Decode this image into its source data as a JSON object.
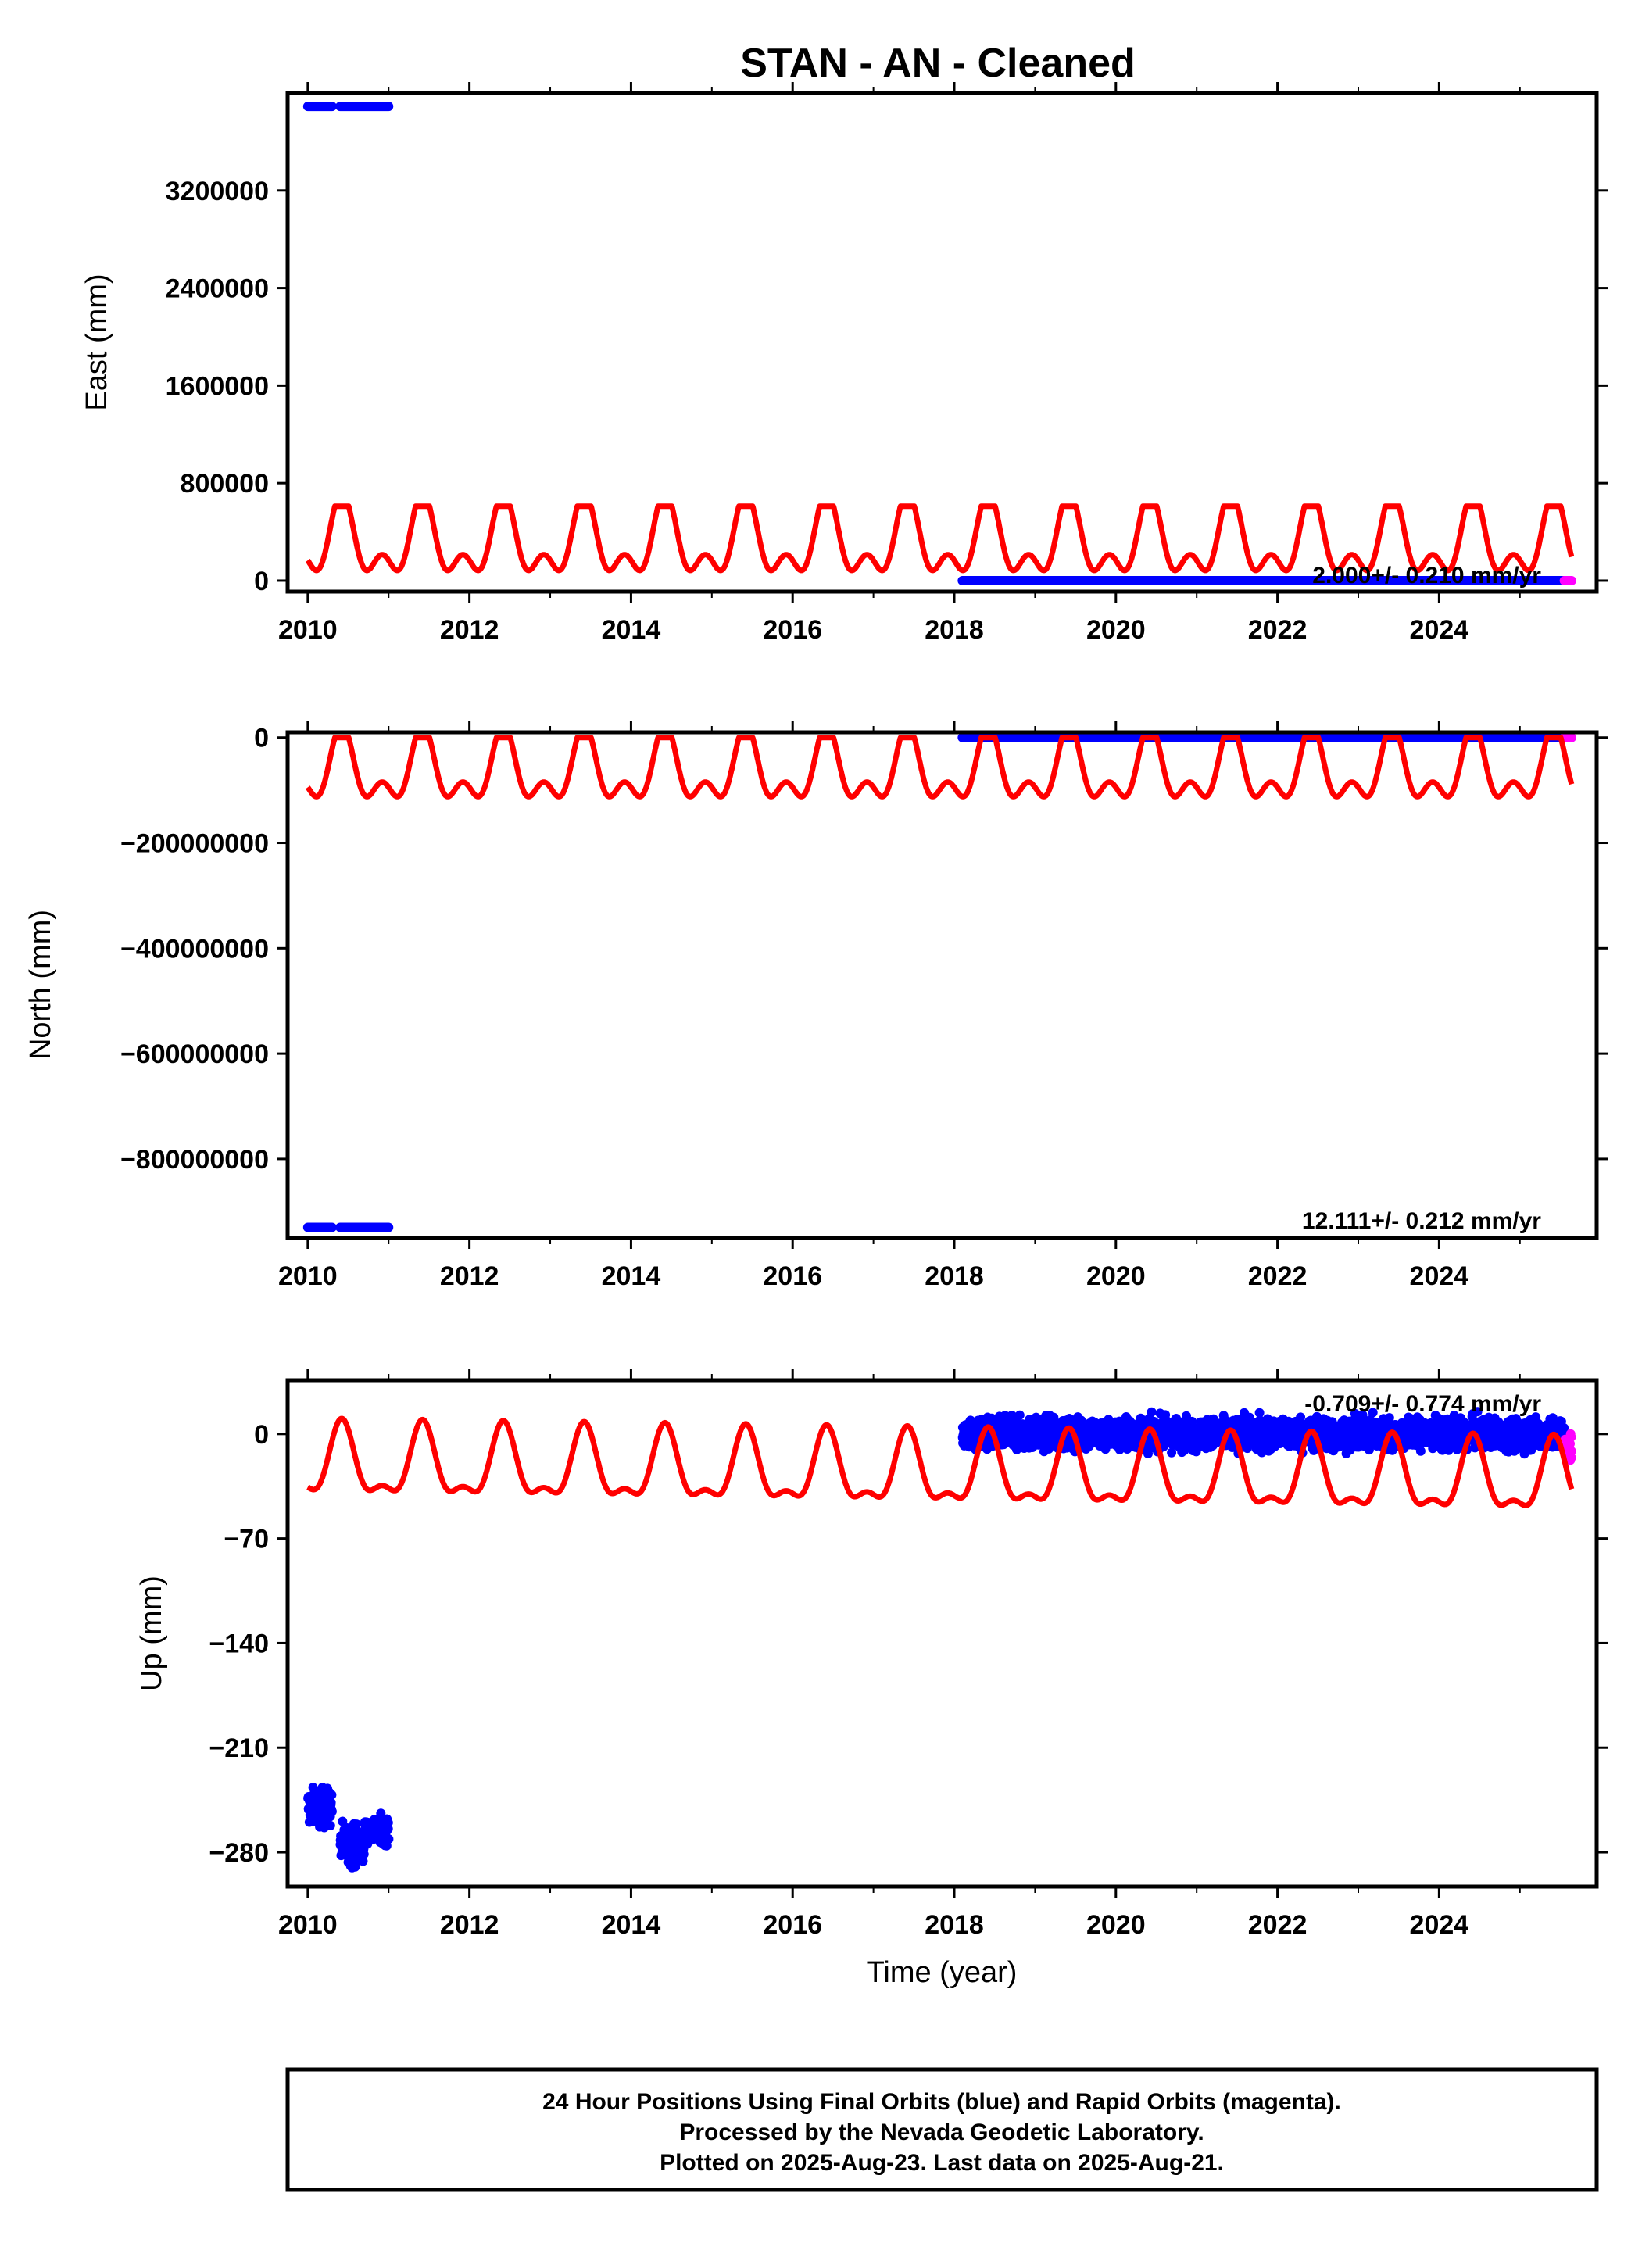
{
  "title": "STAN  - AN - Cleaned",
  "colors": {
    "final_orbits": "#0000ff",
    "rapid_orbits": "#ff00ff",
    "model": "#ff0000",
    "frame": "#000000"
  },
  "caption": {
    "line1": "24 Hour Positions Using Final Orbits (blue) and Rapid Orbits (magenta).",
    "line2": "Processed by the Nevada Geodetic Laboratory.",
    "line3": "Plotted on 2025-Aug-23. Last data on 2025-Aug-21."
  },
  "chart_data": [
    {
      "type": "scatter",
      "panel": "east",
      "ylabel": "East (mm)",
      "rate_text": "2.000+/- 0.210 mm/yr",
      "xlim": [
        2009.75,
        2025.95
      ],
      "ylim": [
        -90000,
        4000000
      ],
      "xticks": [
        2010,
        2012,
        2014,
        2016,
        2018,
        2020,
        2022,
        2024
      ],
      "xtick_labels": [
        "2010",
        "2012",
        "2014",
        "2016",
        "2018",
        "2020",
        "2022",
        "2024"
      ],
      "yticks": [
        0,
        800000,
        1600000,
        2400000,
        3200000
      ],
      "ytick_labels": [
        "0",
        "800000",
        "1600000",
        "2400000",
        "3200000"
      ],
      "series": [
        {
          "role": "final",
          "segments": [
            {
              "x": [
                2010.0,
                2010.3
              ],
              "y": 3890000
            },
            {
              "x": [
                2010.4,
                2011.0
              ],
              "y": 3890000
            },
            {
              "x": [
                2018.1,
                2025.55
              ],
              "y": 0
            }
          ]
        },
        {
          "role": "rapid",
          "segments": [
            {
              "x": [
                2025.55,
                2025.64
              ],
              "y": 0
            }
          ]
        },
        {
          "role": "model",
          "x_range": [
            2010.0,
            2025.64
          ],
          "phase_peak": 2010.42,
          "min": 0,
          "max": 610000,
          "shape": "double-peak"
        }
      ]
    },
    {
      "type": "scatter",
      "panel": "north",
      "ylabel": "North (mm)",
      "rate_text": "12.111+/- 0.212 mm/yr",
      "xlim": [
        2009.75,
        2025.95
      ],
      "ylim": [
        -950000000,
        10000000
      ],
      "xticks": [
        2010,
        2012,
        2014,
        2016,
        2018,
        2020,
        2022,
        2024
      ],
      "xtick_labels": [
        "2010",
        "2012",
        "2014",
        "2016",
        "2018",
        "2020",
        "2022",
        "2024"
      ],
      "yticks": [
        0,
        -200000000,
        -400000000,
        -600000000,
        -800000000
      ],
      "ytick_labels": [
        "0",
        "−200000000",
        "−400000000",
        "−600000000",
        "−800000000"
      ],
      "series": [
        {
          "role": "final",
          "segments": [
            {
              "x": [
                2010.0,
                2010.3
              ],
              "y": -930000000
            },
            {
              "x": [
                2010.4,
                2011.0
              ],
              "y": -930000000
            },
            {
              "x": [
                2018.1,
                2025.55
              ],
              "y": 0
            }
          ]
        },
        {
          "role": "rapid",
          "segments": [
            {
              "x": [
                2025.55,
                2025.64
              ],
              "y": 0
            }
          ]
        },
        {
          "role": "model",
          "x_range": [
            2010.0,
            2025.64
          ],
          "phase_peak": 2010.42,
          "min": -130000000,
          "max": 0,
          "shape": "double-peak"
        }
      ]
    },
    {
      "type": "scatter",
      "panel": "up",
      "ylabel": "Up (mm)",
      "rate_text": "-0.709+/- 0.774 mm/yr",
      "xlim": [
        2009.75,
        2025.95
      ],
      "ylim": [
        -303,
        36
      ],
      "xticks": [
        2010,
        2012,
        2014,
        2016,
        2018,
        2020,
        2022,
        2024
      ],
      "xtick_labels": [
        "2010",
        "2012",
        "2014",
        "2016",
        "2018",
        "2020",
        "2022",
        "2024"
      ],
      "xlabel": "Time (year)",
      "yticks": [
        0,
        -70,
        -140,
        -210,
        -280
      ],
      "ytick_labels": [
        "0",
        "−70",
        "−140",
        "−210",
        "−280"
      ],
      "series": [
        {
          "role": "final",
          "clouds": [
            {
              "x": [
                2010.0,
                2010.3
              ],
              "y_mean": -250,
              "spread": 14
            },
            {
              "x": [
                2010.4,
                2010.7
              ],
              "y_mean": -275,
              "spread": 16
            },
            {
              "x": [
                2010.7,
                2011.0
              ],
              "y_mean": -265,
              "spread": 10
            },
            {
              "x": [
                2018.1,
                2025.55
              ],
              "y_mean": 0,
              "spread": 12
            }
          ]
        },
        {
          "role": "rapid",
          "clouds": [
            {
              "x": [
                2025.55,
                2025.64
              ],
              "y_mean": -10,
              "spread": 10
            }
          ]
        },
        {
          "role": "model",
          "x_range": [
            2010.0,
            2025.64
          ],
          "phase_peak": 2010.42,
          "min_start": -45,
          "max_start": 8,
          "drift_per_year": -0.709,
          "shape": "peak"
        }
      ]
    }
  ]
}
